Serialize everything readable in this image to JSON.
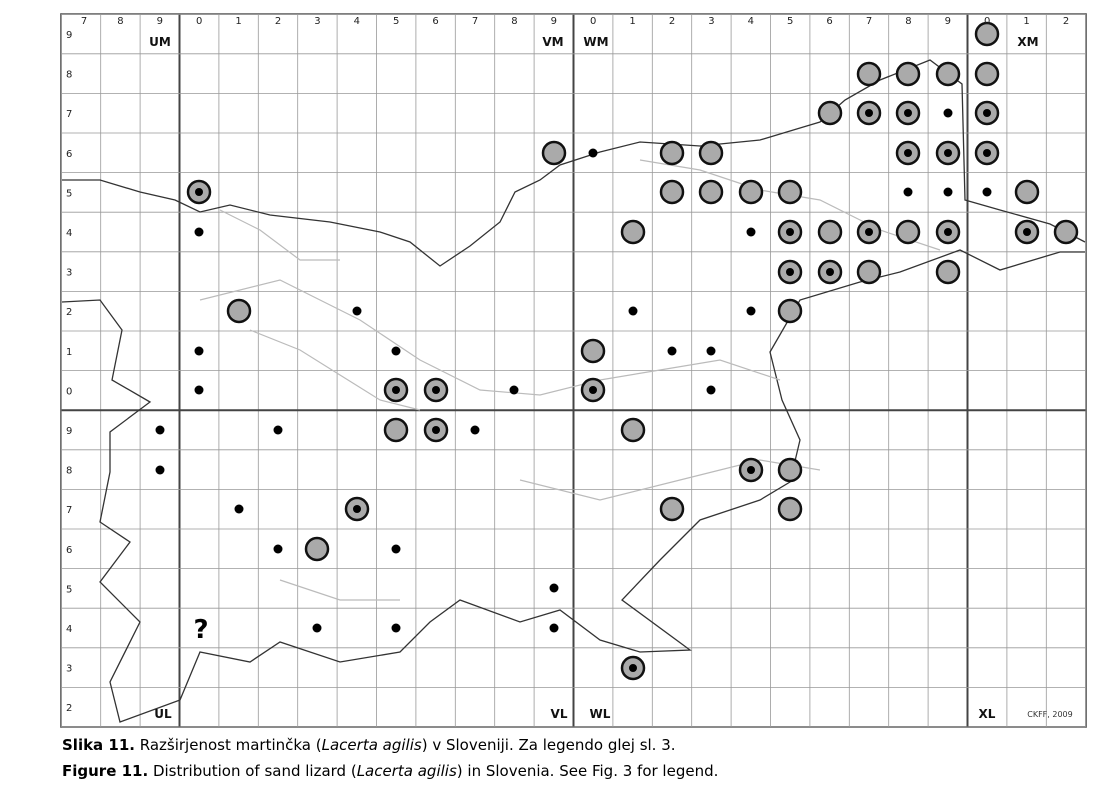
{
  "map": {
    "column_labels": [
      "7",
      "8",
      "9",
      "0",
      "1",
      "2",
      "3",
      "4",
      "5",
      "6",
      "7",
      "8",
      "9",
      "0",
      "1",
      "2",
      "3",
      "4",
      "5",
      "6",
      "7",
      "8",
      "9",
      "0",
      "1",
      "2"
    ],
    "row_labels": [
      "9",
      "8",
      "7",
      "6",
      "5",
      "4",
      "3",
      "2",
      "1",
      "0",
      "9",
      "8",
      "7",
      "6",
      "5",
      "4",
      "3",
      "2"
    ],
    "zones": {
      "top": [
        "UM",
        "VM",
        "WM",
        "XM"
      ],
      "bottom": [
        "UL",
        "VL",
        "WL",
        "XL"
      ]
    },
    "question_mark": "?",
    "credit": "CKFF, 2009"
  },
  "captions": [
    {
      "label": "Slika 11.",
      "before": " Razširjenost martinčka (",
      "species": "Lacerta agilis",
      "after": ") v Sloveniji. Za legendo glej sl. 3."
    },
    {
      "label": "Figure 11.",
      "before": " Distribution of sand lizard (",
      "species": "Lacerta agilis",
      "after": ") in Slovenia. See Fig. 3 for legend."
    }
  ]
}
